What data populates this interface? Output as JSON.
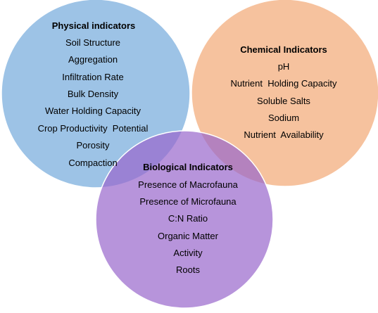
{
  "diagram": {
    "type": "venn",
    "sets": [
      {
        "id": "physical",
        "title": "Physical indicators",
        "color": "#9dc3e6",
        "items": [
          "Soil Structure",
          "Aggregation",
          "Infiltration Rate",
          "Bulk Density",
          "Water Holding Capacity",
          "Crop Productivity  Potential",
          "Porosity",
          "Compaction"
        ]
      },
      {
        "id": "chemical",
        "title": "Chemical Indicators",
        "color": "#f4b183",
        "items": [
          "pH",
          "Nutrient  Holding Capacity",
          "Soluble Salts",
          "Sodium",
          "Nutrient  Availability"
        ]
      },
      {
        "id": "biological",
        "title": "Biological Indicators",
        "color": "#9966cc",
        "items": [
          "Presence of Macrofauna",
          "Presence of Microfauna",
          "C:N Ratio",
          "Organic Matter",
          "Activity",
          "Roots"
        ]
      }
    ]
  }
}
